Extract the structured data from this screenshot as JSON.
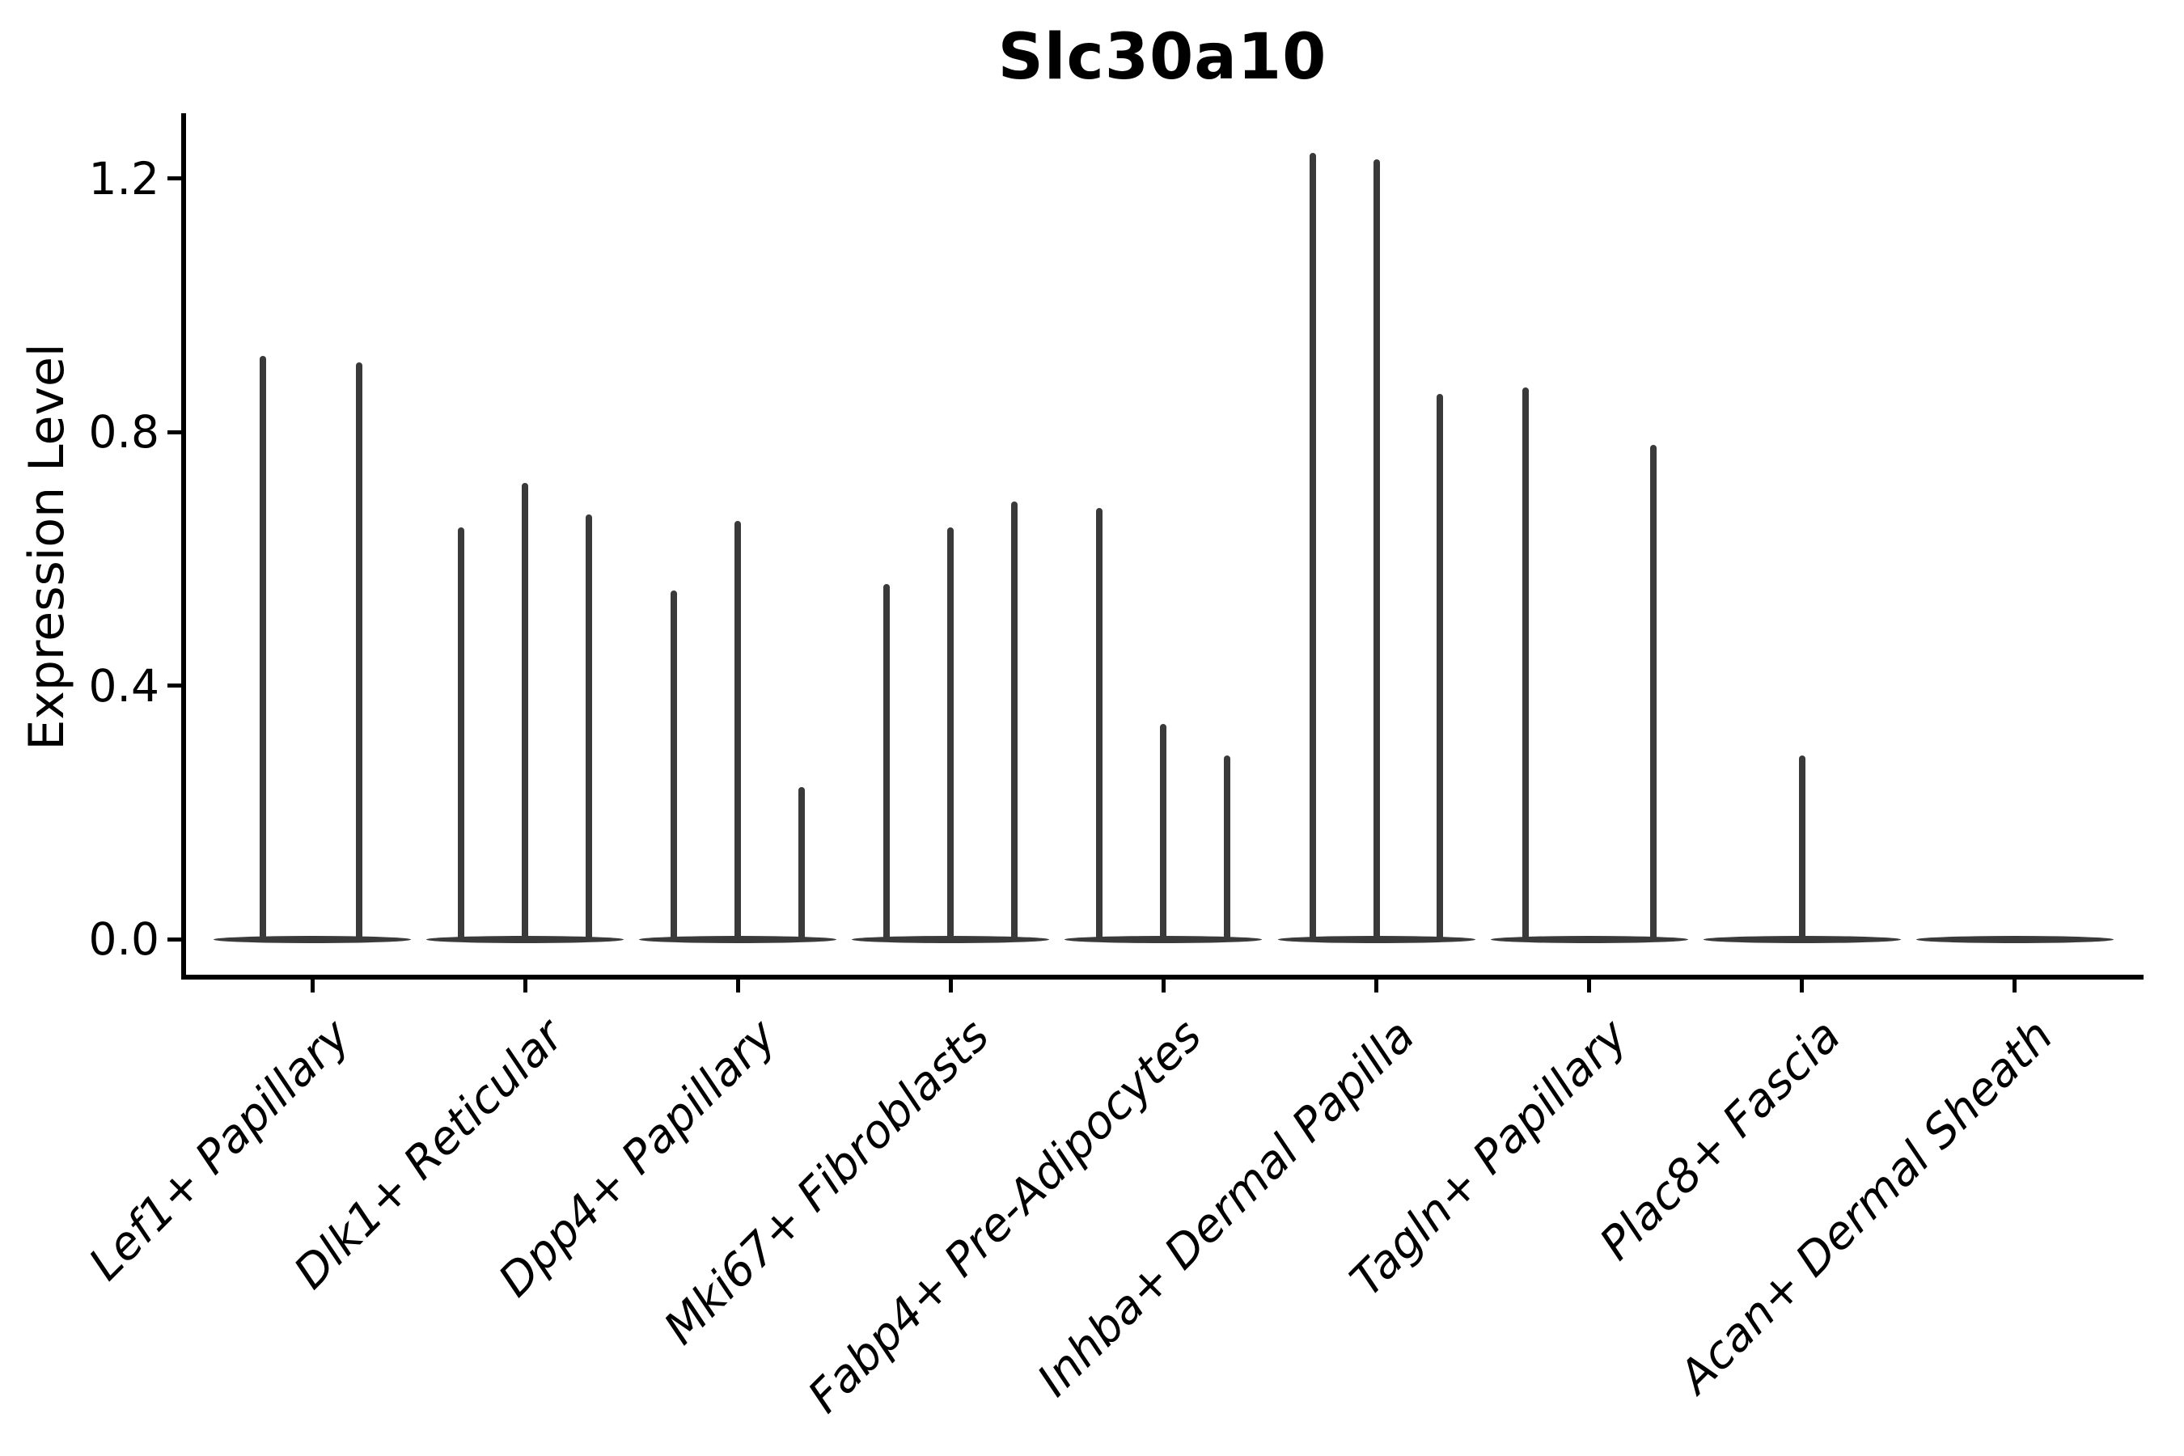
{
  "title": "Slc30a10",
  "y_axis": {
    "label": "Expression Level",
    "tick_labels": [
      "0.0",
      "0.4",
      "0.8",
      "1.2"
    ]
  },
  "chart_data": {
    "type": "violin",
    "title": "Slc30a10",
    "xlabel": "",
    "ylabel": "Expression Level",
    "ylim": [
      -0.06,
      1.3
    ],
    "yticks": [
      0.0,
      0.4,
      0.8,
      1.2
    ],
    "ytick_labels": [
      "0.0",
      "0.4",
      "0.8",
      "1.2"
    ],
    "grid": false,
    "legend": "none",
    "violin_color": "#3a3a3a",
    "axis_color": "#000000",
    "background_color": "#ffffff",
    "description": "Each cell-type category shows flat violin bodies at expression 0 with thin density spikes; spike height = max expression level, x_offset_frac = spike position within category (fraction of category spacing).",
    "categories": [
      "Lef1+ Papillary",
      "Dlk1+ Reticular",
      "Dpp4+ Papillary",
      "Mki67+ Fibroblasts",
      "Fabp4+ Pre-Adipocytes",
      "Inhba+ Dermal Papilla",
      "Tagln+ Papillary",
      "Plac8+ Fascia",
      "Acan+ Dermal Sheath"
    ],
    "groups": [
      {
        "category": "Lef1+ Papillary",
        "spikes": [
          {
            "x_offset_frac": -0.23,
            "value": 0.92
          },
          {
            "x_offset_frac": 0.22,
            "value": 0.91
          }
        ]
      },
      {
        "category": "Dlk1+ Reticular",
        "spikes": [
          {
            "x_offset_frac": -0.3,
            "value": 0.65
          },
          {
            "x_offset_frac": 0.0,
            "value": 0.72
          },
          {
            "x_offset_frac": 0.3,
            "value": 0.67
          }
        ]
      },
      {
        "category": "Dpp4+ Papillary",
        "spikes": [
          {
            "x_offset_frac": -0.3,
            "value": 0.55
          },
          {
            "x_offset_frac": 0.0,
            "value": 0.66
          },
          {
            "x_offset_frac": 0.3,
            "value": 0.24
          }
        ]
      },
      {
        "category": "Mki67+ Fibroblasts",
        "spikes": [
          {
            "x_offset_frac": -0.3,
            "value": 0.56
          },
          {
            "x_offset_frac": 0.0,
            "value": 0.65
          },
          {
            "x_offset_frac": 0.3,
            "value": 0.69
          }
        ]
      },
      {
        "category": "Fabp4+ Pre-Adipocytes",
        "spikes": [
          {
            "x_offset_frac": -0.3,
            "value": 0.68
          },
          {
            "x_offset_frac": 0.0,
            "value": 0.34
          },
          {
            "x_offset_frac": 0.3,
            "value": 0.29
          }
        ]
      },
      {
        "category": "Inhba+ Dermal Papilla",
        "spikes": [
          {
            "x_offset_frac": -0.3,
            "value": 1.24
          },
          {
            "x_offset_frac": 0.0,
            "value": 1.23
          },
          {
            "x_offset_frac": 0.3,
            "value": 0.86
          }
        ]
      },
      {
        "category": "Tagln+ Papillary",
        "spikes": [
          {
            "x_offset_frac": -0.3,
            "value": 0.87
          },
          {
            "x_offset_frac": 0.3,
            "value": 0.78
          }
        ]
      },
      {
        "category": "Plac8+ Fascia",
        "spikes": [
          {
            "x_offset_frac": 0.0,
            "value": 0.29
          }
        ]
      },
      {
        "category": "Acan+ Dermal Sheath",
        "spikes": []
      }
    ]
  }
}
